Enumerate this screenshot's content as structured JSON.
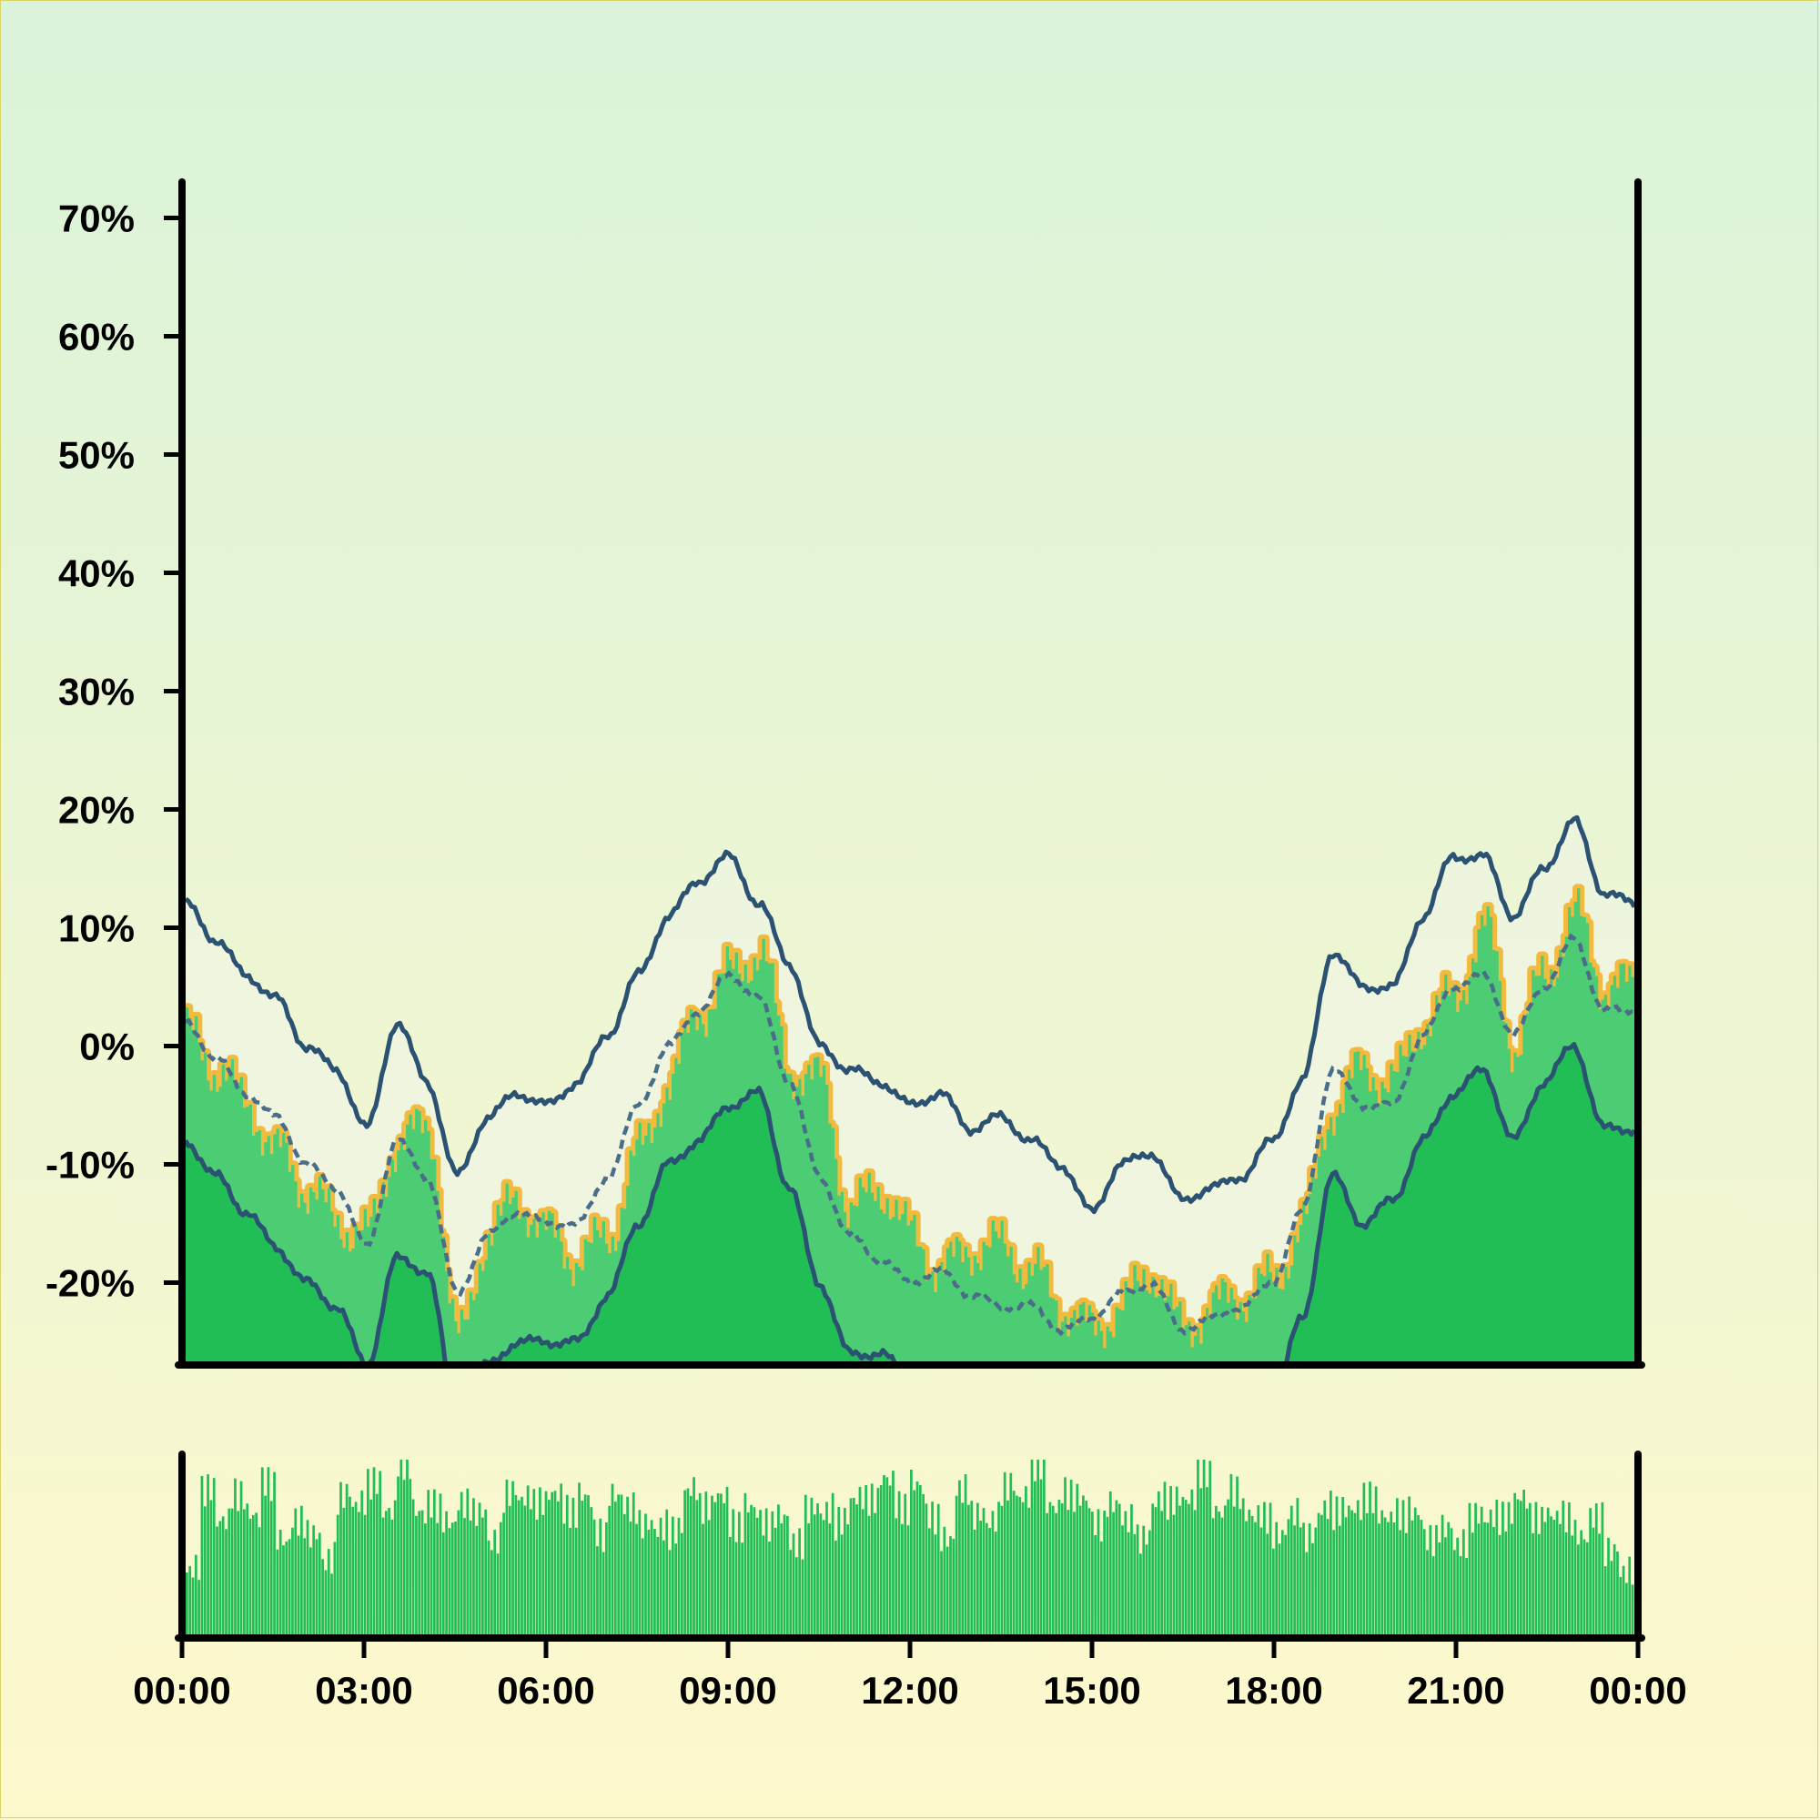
{
  "colors": {
    "background_top": "#daf3da",
    "background_bottom": "#fef8cd",
    "band": "#eef5e0",
    "price_fill_light": "#4ccd73",
    "price_fill_dark": "#20be55",
    "price_outline": "#f2bb3f",
    "band_line": "#2b5272",
    "mid_line": "#4a6e8a",
    "volume": "#20be55",
    "axis": "#000000"
  },
  "chart_data": [
    {
      "type": "area",
      "subtype": "price with envelope bands",
      "title": "",
      "xlabel": "",
      "ylabel": "",
      "ylim": [
        -27,
        73
      ],
      "yticks": [
        -20,
        -10,
        0,
        10,
        20,
        30,
        40,
        50,
        60,
        70
      ],
      "ytick_labels": [
        "-20%",
        "-10%",
        "0%",
        "10%",
        "20%",
        "30%",
        "40%",
        "50%",
        "60%",
        "70%"
      ],
      "x_hours": [
        0,
        0.5,
        1,
        1.5,
        2,
        2.5,
        3,
        3.5,
        4,
        4.5,
        5,
        5.5,
        6,
        6.5,
        7,
        7.5,
        8,
        8.5,
        9,
        9.5,
        10,
        10.5,
        11,
        11.5,
        12,
        12.5,
        13,
        13.5,
        14,
        14.5,
        15,
        15.5,
        16,
        16.5,
        17,
        17.5,
        18,
        18.5,
        19,
        19.5,
        20,
        20.5,
        21,
        21.5,
        22,
        22.5,
        23,
        23.5,
        24
      ],
      "x_unit": "hours since 00:00",
      "series": [
        {
          "role": "price",
          "values": [
            1,
            -2,
            -5,
            -9,
            -12,
            -15,
            -16,
            -8,
            -7,
            -25,
            -16,
            -13,
            -16,
            -18,
            -16,
            -9,
            -3,
            3,
            6,
            8,
            -2,
            -3,
            -14,
            -12,
            -16,
            -19,
            -17,
            -17,
            -19,
            -22,
            -24,
            -22,
            -19,
            -24,
            -22,
            -21,
            -20,
            -15,
            -5,
            -2,
            -3,
            2,
            4,
            10,
            0,
            6,
            11,
            5,
            5
          ]
        },
        {
          "role": "upper band",
          "values": [
            12,
            9,
            6,
            4,
            0,
            -2,
            -7,
            2,
            -3,
            -11,
            -6,
            -4,
            -5,
            -3,
            1,
            6,
            11,
            14,
            16,
            12,
            7,
            0,
            -2,
            -3,
            -5,
            -4,
            -7,
            -6,
            -8,
            -10,
            -14,
            -10,
            -9,
            -13,
            -12,
            -11,
            -8,
            -3,
            8,
            5,
            5,
            11,
            16,
            16,
            11,
            15,
            19,
            13,
            12
          ]
        },
        {
          "role": "middle band",
          "values": [
            2,
            -1,
            -4,
            -6,
            -10,
            -12,
            -17,
            -8,
            -11,
            -21,
            -16,
            -14,
            -15,
            -15,
            -11,
            -5,
            0,
            3,
            6,
            4,
            -3,
            -11,
            -16,
            -18,
            -20,
            -19,
            -21,
            -22,
            -22,
            -24,
            -23,
            -21,
            -20,
            -24,
            -23,
            -22,
            -20,
            -14,
            -2,
            -5,
            -5,
            1,
            5,
            6,
            1,
            5,
            9,
            3,
            3
          ]
        },
        {
          "role": "lower band",
          "values": [
            -8,
            -11,
            -14,
            -17,
            -20,
            -22,
            -27,
            -18,
            -19,
            -31,
            -27,
            -25,
            -25,
            -25,
            -21,
            -15,
            -10,
            -8,
            -5,
            -4,
            -12,
            -20,
            -26,
            -26,
            -28,
            -29,
            -28,
            -30,
            -30,
            -31,
            -32,
            -31,
            -31,
            -32,
            -31,
            -30,
            -30,
            -23,
            -11,
            -15,
            -13,
            -8,
            -4,
            -2,
            -8,
            -3,
            0,
            -7,
            -7
          ]
        }
      ],
      "x_tick_labels": [
        "00:00",
        "03:00",
        "06:00",
        "09:00",
        "12:00",
        "15:00",
        "18:00",
        "21:00",
        "00:00"
      ]
    },
    {
      "type": "bar",
      "subtype": "volume",
      "title": "",
      "bar_count": 96,
      "values": [
        0.35,
        0.75,
        0.55,
        0.7,
        0.62,
        0.85,
        0.58,
        0.72,
        0.65,
        0.48,
        0.8,
        0.7,
        0.78,
        0.6,
        0.88,
        0.65,
        0.74,
        0.69,
        0.82,
        0.77,
        0.58,
        0.8,
        0.72,
        0.66,
        0.7,
        0.62,
        0.75,
        0.59,
        0.85,
        0.8,
        0.7,
        0.64,
        0.58,
        0.76,
        0.63,
        0.69,
        0.55,
        0.7,
        0.66,
        0.74,
        0.6,
        0.78,
        0.72,
        0.62,
        0.7,
        0.67,
        0.79,
        0.66,
        0.84,
        0.71,
        0.62,
        0.9,
        0.74,
        0.66,
        0.8,
        0.7,
        0.86,
        0.64,
        0.75,
        0.77,
        0.68,
        0.82,
        0.73,
        0.6,
        0.76,
        0.71,
        0.68,
        0.82,
        0.62,
        0.78,
        0.7,
        0.73,
        0.65,
        0.76,
        0.6,
        0.7,
        0.64,
        0.62,
        0.68,
        0.6,
        0.66,
        0.72,
        0.61,
        0.69,
        0.58,
        0.7,
        0.64,
        0.6,
        0.68,
        0.57,
        0.62,
        0.66,
        0.6,
        0.74,
        0.56,
        0.42
      ]
    }
  ]
}
